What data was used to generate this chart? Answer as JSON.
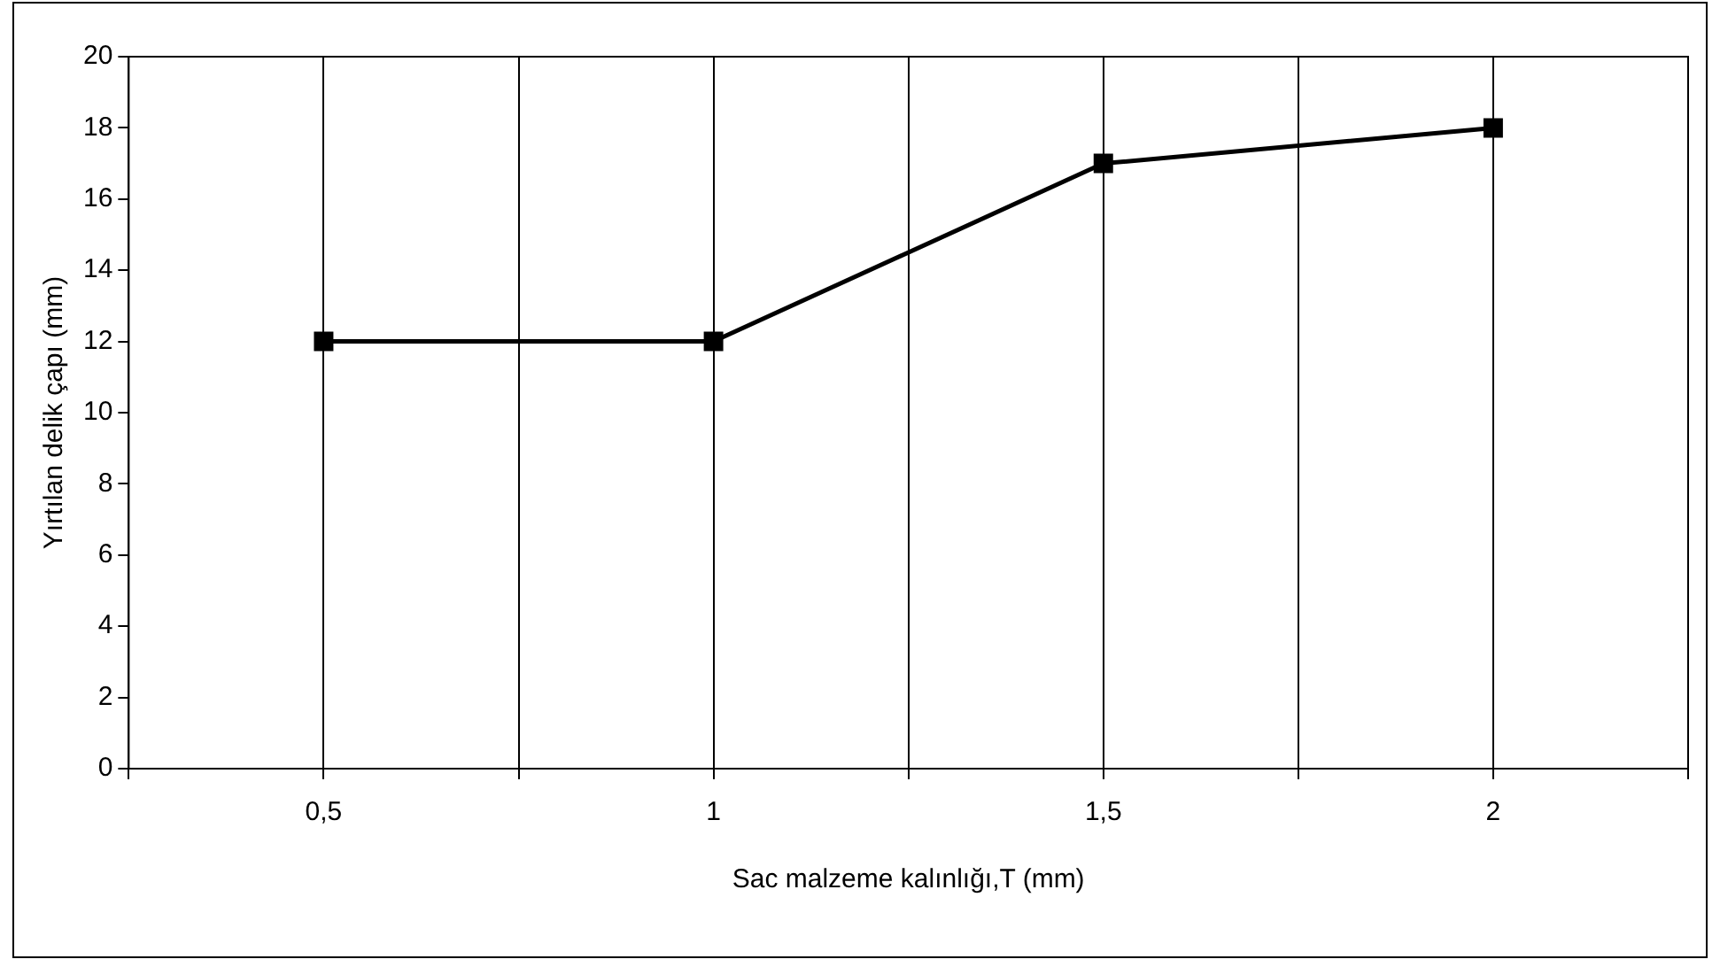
{
  "chart_data": {
    "type": "line",
    "xlabel": "Sac malzeme kalınlığı,T (mm)",
    "ylabel": "Yırtılan delik çapı (mm)",
    "x": [
      0.5,
      1,
      1.5,
      2
    ],
    "series": [
      {
        "color": "#000000",
        "values": [
          12,
          12,
          17,
          18
        ]
      }
    ],
    "xlim": [
      0.25,
      2.25
    ],
    "xticks": [
      {
        "value": 0.25,
        "label": null
      },
      {
        "value": 0.5,
        "label": "0,5"
      },
      {
        "value": 0.75,
        "label": null
      },
      {
        "value": 1,
        "label": "1"
      },
      {
        "value": 1.25,
        "label": null
      },
      {
        "value": 1.5,
        "label": "1,5"
      },
      {
        "value": 1.75,
        "label": null
      },
      {
        "value": 2,
        "label": "2"
      },
      {
        "value": 2.25,
        "label": null
      }
    ],
    "ylim": [
      0,
      20
    ],
    "yticks": [
      0,
      2,
      4,
      6,
      8,
      10,
      12,
      14,
      16,
      18,
      20
    ],
    "grid": "x",
    "legend": false,
    "marker": "square",
    "line_style": "solid"
  }
}
